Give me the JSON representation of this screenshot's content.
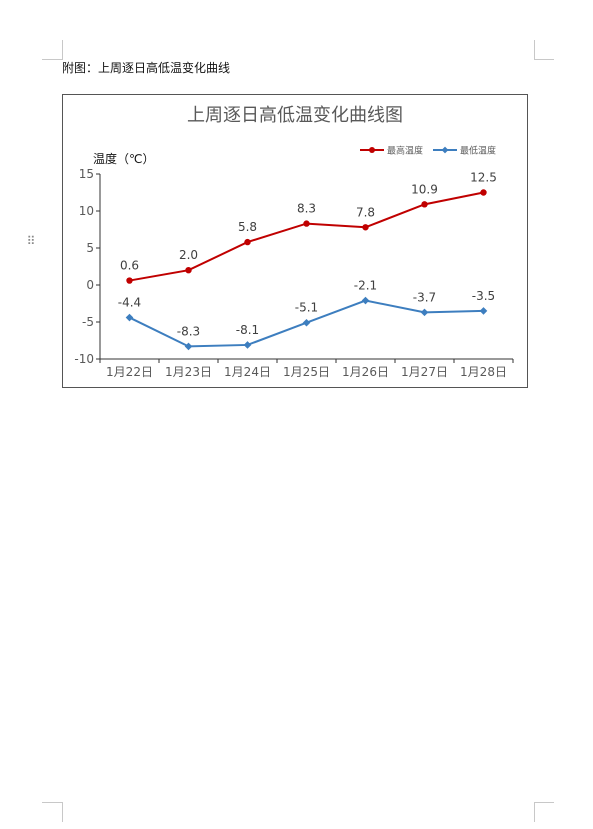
{
  "document": {
    "caption": "附图：上周逐日高低温变化曲线",
    "drag_handle_icon": "drag-handle-icon"
  },
  "chart_data": {
    "type": "line",
    "title": "上周逐日高低温变化曲线图",
    "ylabel": "温度（℃）",
    "xlabel": "",
    "categories": [
      "1月22日",
      "1月23日",
      "1月24日",
      "1月25日",
      "1月26日",
      "1月27日",
      "1月28日"
    ],
    "ylim": [
      -10,
      15
    ],
    "yticks": [
      15,
      10,
      5,
      0,
      -5,
      -10
    ],
    "grid": false,
    "legend_position": "top-right",
    "series": [
      {
        "name": "最高温度",
        "color": "#c00000",
        "marker": "circle",
        "values": [
          0.6,
          2.0,
          5.8,
          8.3,
          7.8,
          10.9,
          12.5
        ],
        "labels": [
          "0.6",
          "2.0",
          "5.8",
          "8.3",
          "7.8",
          "10.9",
          "12.5"
        ]
      },
      {
        "name": "最低温度",
        "color": "#3d7ebf",
        "marker": "diamond",
        "values": [
          -4.4,
          -8.3,
          -8.1,
          -5.1,
          -2.1,
          -3.7,
          -3.5
        ],
        "labels": [
          "-4.4",
          "-8.3",
          "-8.1",
          "-5.1",
          "-2.1",
          "-3.7",
          "-3.5"
        ]
      }
    ]
  }
}
